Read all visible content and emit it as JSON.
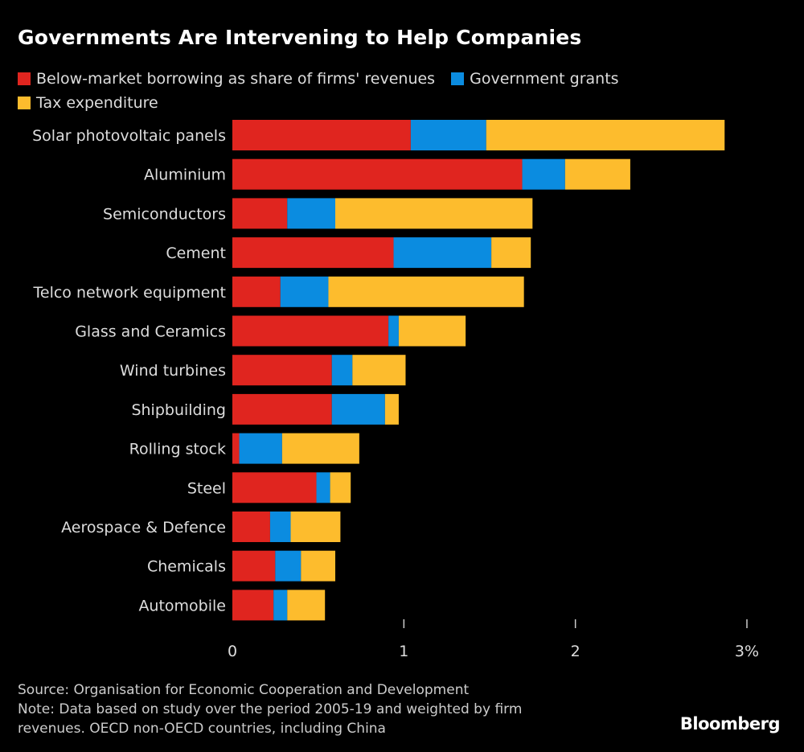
{
  "chart_data": {
    "type": "bar",
    "orientation": "horizontal",
    "stacked": true,
    "title": "Governments Are Intervening to Help Companies",
    "categories": [
      "Solar photovoltaic panels",
      "Aluminium",
      "Semiconductors",
      "Cement",
      "Telco network equipment",
      "Glass and Ceramics",
      "Wind turbines",
      "Shipbuilding",
      "Rolling stock",
      "Steel",
      "Aerospace & Defence",
      "Chemicals",
      "Automobile"
    ],
    "series": [
      {
        "name": "Below-market borrowing as share of firms' revenues",
        "color": "#e0251f",
        "values": [
          1.04,
          1.69,
          0.32,
          0.94,
          0.28,
          0.91,
          0.58,
          0.58,
          0.04,
          0.49,
          0.22,
          0.25,
          0.24
        ]
      },
      {
        "name": "Government grants",
        "color": "#0b8ce0",
        "values": [
          0.44,
          0.25,
          0.28,
          0.57,
          0.28,
          0.06,
          0.12,
          0.31,
          0.25,
          0.08,
          0.12,
          0.15,
          0.08
        ]
      },
      {
        "name": "Tax expenditure",
        "color": "#fdbc2d",
        "values": [
          1.39,
          0.38,
          1.15,
          0.23,
          1.14,
          0.39,
          0.31,
          0.08,
          0.45,
          0.12,
          0.29,
          0.2,
          0.22
        ]
      }
    ],
    "xlim": [
      0,
      3
    ],
    "xticks": [
      "0",
      "1",
      "2",
      "3%"
    ],
    "grid": false,
    "legend": "top"
  },
  "footer": {
    "source": "Source: Organisation for Economic Cooperation and Development",
    "note1": "Note: Data based on study over the period 2005-19 and weighted by firm",
    "note2": "revenues. OECD non-OECD countries, including China"
  },
  "logo": "Bloomberg"
}
